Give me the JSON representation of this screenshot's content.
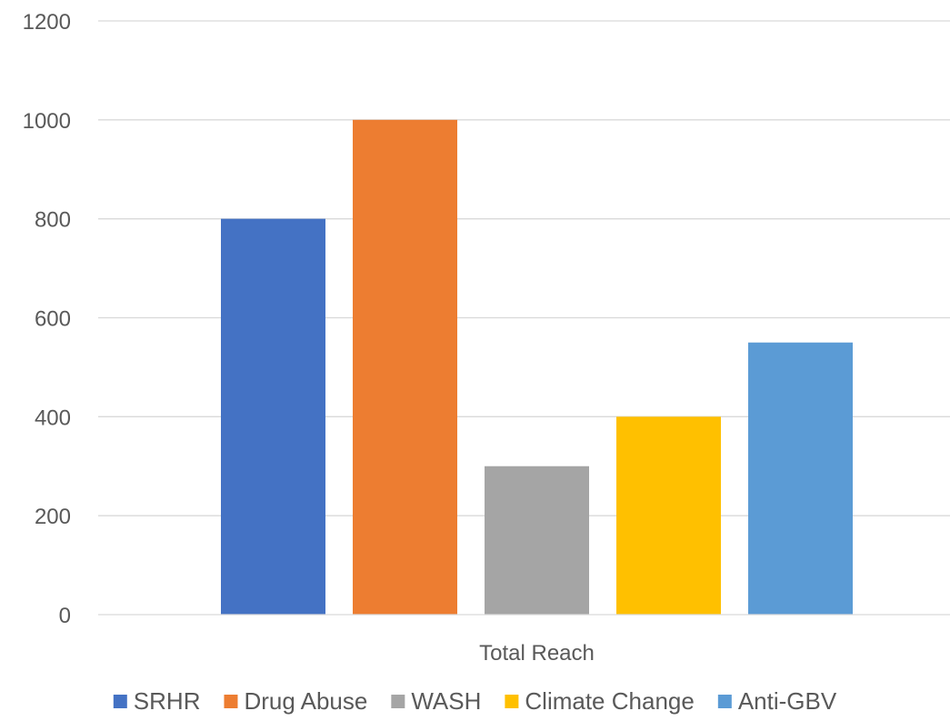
{
  "chart_data": {
    "type": "bar",
    "title": "",
    "xlabel": "",
    "ylabel": "",
    "categories": [
      "Total Reach"
    ],
    "series": [
      {
        "name": "SRHR",
        "values": [
          800
        ],
        "color": "#4472C4"
      },
      {
        "name": "Drug Abuse",
        "values": [
          1000
        ],
        "color": "#ED7D31"
      },
      {
        "name": "WASH",
        "values": [
          300
        ],
        "color": "#A5A5A5"
      },
      {
        "name": "Climate Change",
        "values": [
          400
        ],
        "color": "#FFC000"
      },
      {
        "name": "Anti-GBV",
        "values": [
          550
        ],
        "color": "#5B9BD5"
      }
    ],
    "ylim": [
      0,
      1200
    ],
    "yticks": [
      "0",
      "200",
      "400",
      "600",
      "800",
      "1000",
      "1200"
    ],
    "grid": true,
    "legend_position": "bottom"
  }
}
